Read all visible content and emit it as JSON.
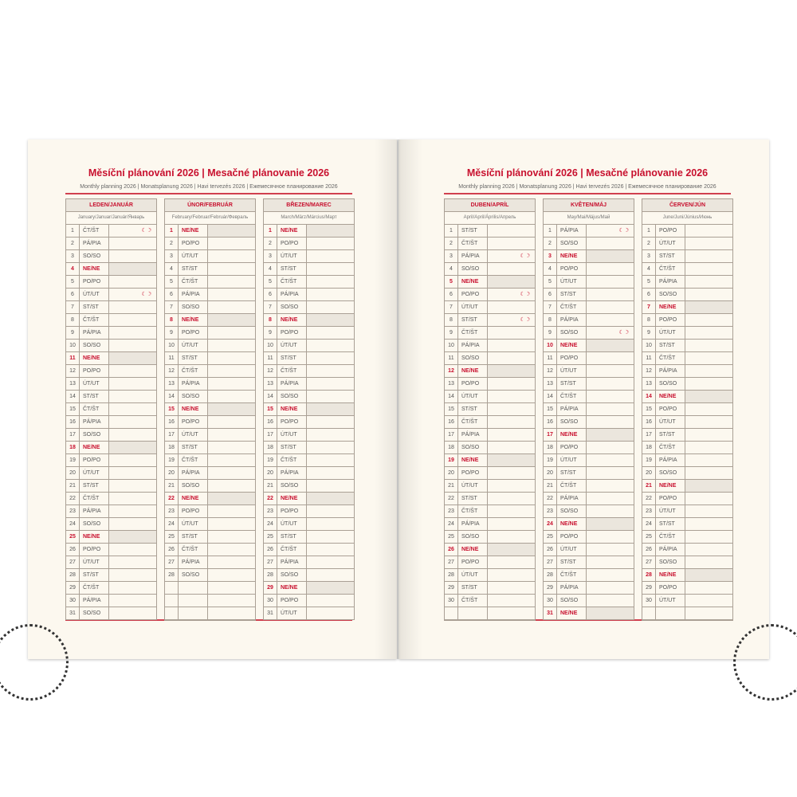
{
  "left": {
    "title": "Měsíční plánování 2026 | Mesačné plánovanie 2026",
    "subtitle": "Monthly planning 2026 | Monatsplanung 2026 | Havi tervezés 2026 | Ежемесячное планирование 2026"
  },
  "right": {
    "title": "Měsíční plánování 2026 | Mesačné plánovanie 2026",
    "subtitle": "Monthly planning 2026 | Monatsplanung 2026 | Havi tervezés 2026 | Ежемесячное планирование 2026"
  },
  "colors": {
    "accent": "#c8102e",
    "sunday_fill": "#ebe6dd",
    "paper": "#fcf8ef"
  },
  "moon_icon": "☾☽",
  "months": [
    {
      "name": "LEDEN/JANUÁR",
      "sub": "January/Januar/Január/Январь",
      "moons": [
        1,
        6
      ],
      "days": [
        [
          "1",
          "ČT/ŠT"
        ],
        [
          "2",
          "PÁ/PIA"
        ],
        [
          "3",
          "SO/SO"
        ],
        [
          "4",
          "NE/NE"
        ],
        [
          "5",
          "PO/PO"
        ],
        [
          "6",
          "ÚT/UT"
        ],
        [
          "7",
          "ST/ST"
        ],
        [
          "8",
          "ČT/ŠT"
        ],
        [
          "9",
          "PÁ/PIA"
        ],
        [
          "10",
          "SO/SO"
        ],
        [
          "11",
          "NE/NE"
        ],
        [
          "12",
          "PO/PO"
        ],
        [
          "13",
          "ÚT/UT"
        ],
        [
          "14",
          "ST/ST"
        ],
        [
          "15",
          "ČT/ŠT"
        ],
        [
          "16",
          "PÁ/PIA"
        ],
        [
          "17",
          "SO/SO"
        ],
        [
          "18",
          "NE/NE"
        ],
        [
          "19",
          "PO/PO"
        ],
        [
          "20",
          "ÚT/UT"
        ],
        [
          "21",
          "ST/ST"
        ],
        [
          "22",
          "ČT/ŠT"
        ],
        [
          "23",
          "PÁ/PIA"
        ],
        [
          "24",
          "SO/SO"
        ],
        [
          "25",
          "NE/NE"
        ],
        [
          "26",
          "PO/PO"
        ],
        [
          "27",
          "ÚT/UT"
        ],
        [
          "28",
          "ST/ST"
        ],
        [
          "29",
          "ČT/ŠT"
        ],
        [
          "30",
          "PÁ/PIA"
        ],
        [
          "31",
          "SO/SO"
        ]
      ]
    },
    {
      "name": "ÚNOR/FEBRUÁR",
      "sub": "February/Februar/Február/Февраль",
      "moons": [],
      "days": [
        [
          "1",
          "NE/NE"
        ],
        [
          "2",
          "PO/PO"
        ],
        [
          "3",
          "ÚT/UT"
        ],
        [
          "4",
          "ST/ST"
        ],
        [
          "5",
          "ČT/ŠT"
        ],
        [
          "6",
          "PÁ/PIA"
        ],
        [
          "7",
          "SO/SO"
        ],
        [
          "8",
          "NE/NE"
        ],
        [
          "9",
          "PO/PO"
        ],
        [
          "10",
          "ÚT/UT"
        ],
        [
          "11",
          "ST/ST"
        ],
        [
          "12",
          "ČT/ŠT"
        ],
        [
          "13",
          "PÁ/PIA"
        ],
        [
          "14",
          "SO/SO"
        ],
        [
          "15",
          "NE/NE"
        ],
        [
          "16",
          "PO/PO"
        ],
        [
          "17",
          "ÚT/UT"
        ],
        [
          "18",
          "ST/ST"
        ],
        [
          "19",
          "ČT/ŠT"
        ],
        [
          "20",
          "PÁ/PIA"
        ],
        [
          "21",
          "SO/SO"
        ],
        [
          "22",
          "NE/NE"
        ],
        [
          "23",
          "PO/PO"
        ],
        [
          "24",
          "ÚT/UT"
        ],
        [
          "25",
          "ST/ST"
        ],
        [
          "26",
          "ČT/ŠT"
        ],
        [
          "27",
          "PÁ/PIA"
        ],
        [
          "28",
          "SO/SO"
        ]
      ]
    },
    {
      "name": "BŘEZEN/MAREC",
      "sub": "March/März/Március/Март",
      "moons": [],
      "days": [
        [
          "1",
          "NE/NE"
        ],
        [
          "2",
          "PO/PO"
        ],
        [
          "3",
          "ÚT/UT"
        ],
        [
          "4",
          "ST/ST"
        ],
        [
          "5",
          "ČT/ŠT"
        ],
        [
          "6",
          "PÁ/PIA"
        ],
        [
          "7",
          "SO/SO"
        ],
        [
          "8",
          "NE/NE"
        ],
        [
          "9",
          "PO/PO"
        ],
        [
          "10",
          "ÚT/UT"
        ],
        [
          "11",
          "ST/ST"
        ],
        [
          "12",
          "ČT/ŠT"
        ],
        [
          "13",
          "PÁ/PIA"
        ],
        [
          "14",
          "SO/SO"
        ],
        [
          "15",
          "NE/NE"
        ],
        [
          "16",
          "PO/PO"
        ],
        [
          "17",
          "ÚT/UT"
        ],
        [
          "18",
          "ST/ST"
        ],
        [
          "19",
          "ČT/ŠT"
        ],
        [
          "20",
          "PÁ/PIA"
        ],
        [
          "21",
          "SO/SO"
        ],
        [
          "22",
          "NE/NE"
        ],
        [
          "23",
          "PO/PO"
        ],
        [
          "24",
          "ÚT/UT"
        ],
        [
          "25",
          "ST/ST"
        ],
        [
          "26",
          "ČT/ŠT"
        ],
        [
          "27",
          "PÁ/PIA"
        ],
        [
          "28",
          "SO/SO"
        ],
        [
          "29",
          "NE/NE"
        ],
        [
          "30",
          "PO/PO"
        ],
        [
          "31",
          "ÚT/UT"
        ]
      ]
    },
    {
      "name": "DUBEN/APRÍL",
      "sub": "April/April/Április/Апрель",
      "moons": [
        3,
        6,
        8
      ],
      "days": [
        [
          "1",
          "ST/ST"
        ],
        [
          "2",
          "ČT/ŠT"
        ],
        [
          "3",
          "PÁ/PIA"
        ],
        [
          "4",
          "SO/SO"
        ],
        [
          "5",
          "NE/NE"
        ],
        [
          "6",
          "PO/PO"
        ],
        [
          "7",
          "ÚT/UT"
        ],
        [
          "8",
          "ST/ST"
        ],
        [
          "9",
          "ČT/ŠT"
        ],
        [
          "10",
          "PÁ/PIA"
        ],
        [
          "11",
          "SO/SO"
        ],
        [
          "12",
          "NE/NE"
        ],
        [
          "13",
          "PO/PO"
        ],
        [
          "14",
          "ÚT/UT"
        ],
        [
          "15",
          "ST/ST"
        ],
        [
          "16",
          "ČT/ŠT"
        ],
        [
          "17",
          "PÁ/PIA"
        ],
        [
          "18",
          "SO/SO"
        ],
        [
          "19",
          "NE/NE"
        ],
        [
          "20",
          "PO/PO"
        ],
        [
          "21",
          "ÚT/UT"
        ],
        [
          "22",
          "ST/ST"
        ],
        [
          "23",
          "ČT/ŠT"
        ],
        [
          "24",
          "PÁ/PIA"
        ],
        [
          "25",
          "SO/SO"
        ],
        [
          "26",
          "NE/NE"
        ],
        [
          "27",
          "PO/PO"
        ],
        [
          "28",
          "ÚT/UT"
        ],
        [
          "29",
          "ST/ST"
        ],
        [
          "30",
          "ČT/ŠT"
        ]
      ]
    },
    {
      "name": "KVĚTEN/MÁJ",
      "sub": "May/Mai/Május/Май",
      "moons": [
        1,
        9
      ],
      "days": [
        [
          "1",
          "PÁ/PIA"
        ],
        [
          "2",
          "SO/SO"
        ],
        [
          "3",
          "NE/NE"
        ],
        [
          "4",
          "PO/PO"
        ],
        [
          "5",
          "ÚT/UT"
        ],
        [
          "6",
          "ST/ST"
        ],
        [
          "7",
          "ČT/ŠT"
        ],
        [
          "8",
          "PÁ/PIA"
        ],
        [
          "9",
          "SO/SO"
        ],
        [
          "10",
          "NE/NE"
        ],
        [
          "11",
          "PO/PO"
        ],
        [
          "12",
          "ÚT/UT"
        ],
        [
          "13",
          "ST/ST"
        ],
        [
          "14",
          "ČT/ŠT"
        ],
        [
          "15",
          "PÁ/PIA"
        ],
        [
          "16",
          "SO/SO"
        ],
        [
          "17",
          "NE/NE"
        ],
        [
          "18",
          "PO/PO"
        ],
        [
          "19",
          "ÚT/UT"
        ],
        [
          "20",
          "ST/ST"
        ],
        [
          "21",
          "ČT/ŠT"
        ],
        [
          "22",
          "PÁ/PIA"
        ],
        [
          "23",
          "SO/SO"
        ],
        [
          "24",
          "NE/NE"
        ],
        [
          "25",
          "PO/PO"
        ],
        [
          "26",
          "ÚT/UT"
        ],
        [
          "27",
          "ST/ST"
        ],
        [
          "28",
          "ČT/ŠT"
        ],
        [
          "29",
          "PÁ/PIA"
        ],
        [
          "30",
          "SO/SO"
        ],
        [
          "31",
          "NE/NE"
        ]
      ]
    },
    {
      "name": "ČERVEN/JÚN",
      "sub": "June/Juni/Június/Июнь",
      "moons": [],
      "days": [
        [
          "1",
          "PO/PO"
        ],
        [
          "2",
          "ÚT/UT"
        ],
        [
          "3",
          "ST/ST"
        ],
        [
          "4",
          "ČT/ŠT"
        ],
        [
          "5",
          "PÁ/PIA"
        ],
        [
          "6",
          "SO/SO"
        ],
        [
          "7",
          "NE/NE"
        ],
        [
          "8",
          "PO/PO"
        ],
        [
          "9",
          "ÚT/UT"
        ],
        [
          "10",
          "ST/ST"
        ],
        [
          "11",
          "ČT/ŠT"
        ],
        [
          "12",
          "PÁ/PIA"
        ],
        [
          "13",
          "SO/SO"
        ],
        [
          "14",
          "NE/NE"
        ],
        [
          "15",
          "PO/PO"
        ],
        [
          "16",
          "ÚT/UT"
        ],
        [
          "17",
          "ST/ST"
        ],
        [
          "18",
          "ČT/ŠT"
        ],
        [
          "19",
          "PÁ/PIA"
        ],
        [
          "20",
          "SO/SO"
        ],
        [
          "21",
          "NE/NE"
        ],
        [
          "22",
          "PO/PO"
        ],
        [
          "23",
          "ÚT/UT"
        ],
        [
          "24",
          "ST/ST"
        ],
        [
          "25",
          "ČT/ŠT"
        ],
        [
          "26",
          "PÁ/PIA"
        ],
        [
          "27",
          "SO/SO"
        ],
        [
          "28",
          "NE/NE"
        ],
        [
          "29",
          "PO/PO"
        ],
        [
          "30",
          "ÚT/UT"
        ]
      ]
    }
  ]
}
